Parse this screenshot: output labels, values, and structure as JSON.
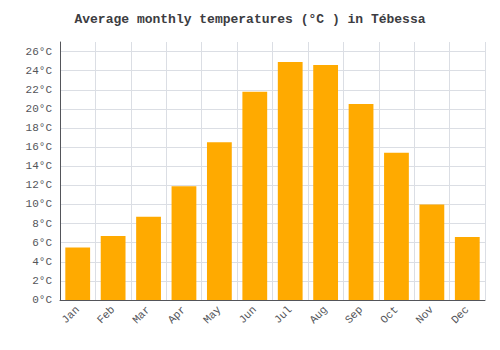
{
  "chart_data": {
    "type": "bar",
    "title": "Average monthly temperatures (°C ) in Tébessa",
    "categories": [
      "Jan",
      "Feb",
      "Mar",
      "Apr",
      "May",
      "Jun",
      "Jul",
      "Aug",
      "Sep",
      "Oct",
      "Nov",
      "Dec"
    ],
    "values": [
      5.5,
      6.7,
      8.7,
      11.9,
      16.5,
      21.8,
      24.9,
      24.6,
      20.5,
      15.4,
      10.0,
      6.6
    ],
    "color": "#FFAA00",
    "ylim": [
      0,
      27
    ],
    "yticks": [
      {
        "value": 0,
        "label": "0°C"
      },
      {
        "value": 2,
        "label": "2°C"
      },
      {
        "value": 4,
        "label": "4°C"
      },
      {
        "value": 6,
        "label": "6°C"
      },
      {
        "value": 8,
        "label": "8°C"
      },
      {
        "value": 10,
        "label": "10°C"
      },
      {
        "value": 12,
        "label": "12°C"
      },
      {
        "value": 14,
        "label": "14°C"
      },
      {
        "value": 16,
        "label": "16°C"
      },
      {
        "value": 18,
        "label": "18°C"
      },
      {
        "value": 20,
        "label": "20°C"
      },
      {
        "value": 22,
        "label": "22°C"
      },
      {
        "value": 24,
        "label": "24°C"
      },
      {
        "value": 26,
        "label": "26°C"
      }
    ],
    "grid": true
  }
}
